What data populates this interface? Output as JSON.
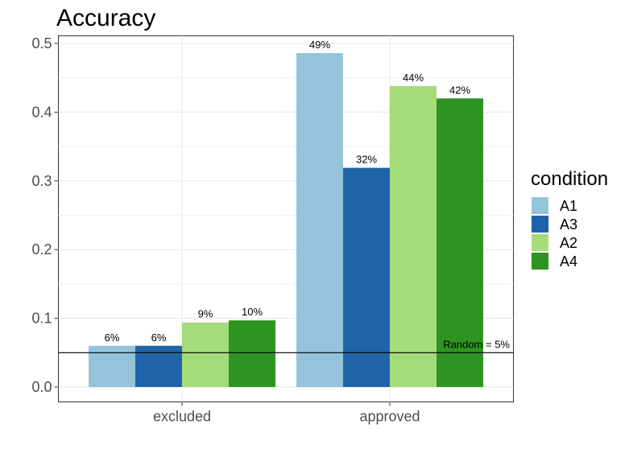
{
  "chart_data": {
    "type": "bar",
    "title": "Accuracy",
    "xlabel": "",
    "ylabel": "",
    "categories": [
      "excluded",
      "approved"
    ],
    "series": [
      {
        "name": "A1",
        "values": [
          0.06,
          0.486
        ],
        "labels": [
          "6%",
          "49%"
        ],
        "color": "#96c3dc"
      },
      {
        "name": "A3",
        "values": [
          0.06,
          0.319
        ],
        "labels": [
          "6%",
          "32%"
        ],
        "color": "#1f63a8"
      },
      {
        "name": "A2",
        "values": [
          0.094,
          0.438
        ],
        "labels": [
          "9%",
          "44%"
        ],
        "color": "#a6db7a"
      },
      {
        "name": "A4",
        "values": [
          0.097,
          0.42
        ],
        "labels": [
          "10%",
          "42%"
        ],
        "color": "#2e9421"
      }
    ],
    "ylim": [
      0,
      0.5
    ],
    "yticks": [
      "0.0",
      "0.1",
      "0.2",
      "0.3",
      "0.4",
      "0.5"
    ],
    "grid": true,
    "legend": {
      "title": "condition",
      "position": "right"
    },
    "reference_line": {
      "value": 0.05,
      "label": "Random = 5%"
    }
  }
}
